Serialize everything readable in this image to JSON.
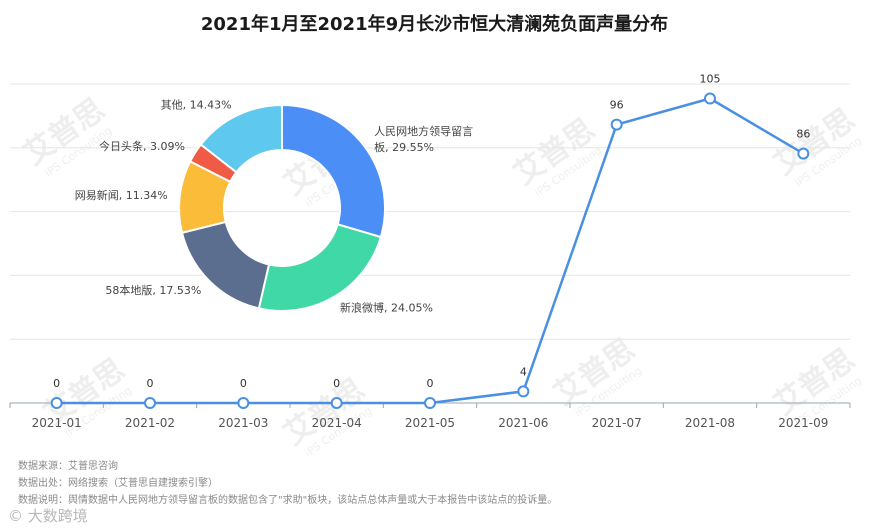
{
  "title": "2021年1月至2021年9月长沙市恒大清澜苑负面声量分布",
  "chart_data": [
    {
      "type": "line",
      "categories": [
        "2021-01",
        "2021-02",
        "2021-03",
        "2021-04",
        "2021-05",
        "2021-06",
        "2021-07",
        "2021-08",
        "2021-09"
      ],
      "values": [
        0,
        0,
        0,
        0,
        0,
        4,
        96,
        105,
        86
      ],
      "ylim": [
        0,
        110
      ],
      "grid": true,
      "color": "#4a90e2"
    },
    {
      "type": "pie",
      "slices": [
        {
          "label": "人民网地方领导留言板",
          "label_lines": [
            "人民网地方领导留言",
            "板, 29.55%"
          ],
          "value": 29.55,
          "color": "#4b8ef5"
        },
        {
          "label": "新浪微博",
          "label_lines": [
            "新浪微博, 24.05%"
          ],
          "value": 24.05,
          "color": "#3fd8a6"
        },
        {
          "label": "58本地版",
          "label_lines": [
            "58本地版, 17.53%"
          ],
          "value": 17.53,
          "color": "#5b6e8f"
        },
        {
          "label": "网易新闻",
          "label_lines": [
            "网易新闻, 11.34%"
          ],
          "value": 11.34,
          "color": "#fbbc3a"
        },
        {
          "label": "今日头条",
          "label_lines": [
            "今日头条, 3.09%"
          ],
          "value": 3.09,
          "color": "#ef5b45"
        },
        {
          "label": "其他",
          "label_lines": [
            "其他, 14.43%"
          ],
          "value": 14.43,
          "color": "#5ec8ee"
        }
      ]
    }
  ],
  "notes": [
    "数据来源：艾普思咨询",
    "数据出处：网络搜索（艾普思自建搜索引擎）",
    "数据说明：舆情数据中人民网地方领导留言板的数据包含了\"求助\"板块，该站点总体声量或大于本报告中该站点的投诉量。"
  ],
  "watermark": {
    "text": "艾普思",
    "sub": "iPS Consulting"
  },
  "brand": "© 大数跨境"
}
